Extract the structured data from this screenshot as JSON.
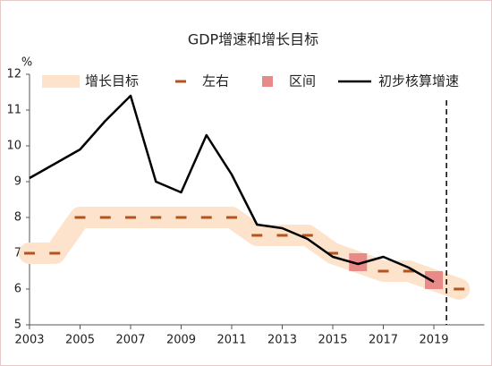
{
  "chart_data": {
    "type": "line",
    "title": "GDP增速和增长目标",
    "y_unit": "%",
    "x": [
      2003,
      2004,
      2005,
      2006,
      2007,
      2008,
      2009,
      2010,
      2011,
      2012,
      2013,
      2014,
      2015,
      2016,
      2017,
      2018,
      2019,
      2020
    ],
    "xlim": [
      2003,
      2021
    ],
    "xticks": [
      2003,
      2005,
      2007,
      2009,
      2011,
      2013,
      2015,
      2017,
      2019
    ],
    "ylim": [
      5,
      12
    ],
    "yticks": [
      5,
      6,
      7,
      8,
      9,
      10,
      11,
      12
    ],
    "vline_x": 2019.5,
    "series": [
      {
        "name": "增长目标",
        "style": "band",
        "color": "#fde3cc",
        "values": [
          7,
          7,
          8,
          8,
          8,
          8,
          8,
          8,
          8,
          7.5,
          7.5,
          7.5,
          7,
          6.75,
          6.5,
          6.5,
          6.25,
          6
        ]
      },
      {
        "name": "左右",
        "style": "dash",
        "color": "#b4531b",
        "values": [
          7,
          7,
          8,
          8,
          8,
          8,
          8,
          8,
          8,
          7.5,
          7.5,
          7.5,
          7,
          null,
          6.5,
          6.5,
          null,
          6
        ]
      },
      {
        "name": "区间",
        "style": "square",
        "color": "#e88a88",
        "values": [
          null,
          null,
          null,
          null,
          null,
          null,
          null,
          null,
          null,
          null,
          null,
          null,
          null,
          6.75,
          null,
          null,
          6.25,
          null
        ]
      },
      {
        "name": "初步核算增速",
        "style": "line",
        "color": "#000000",
        "values": [
          9.1,
          9.5,
          9.9,
          10.7,
          11.4,
          9.0,
          8.7,
          10.3,
          9.2,
          7.8,
          7.7,
          7.4,
          6.9,
          6.7,
          6.9,
          6.6,
          6.2,
          null
        ]
      }
    ]
  }
}
